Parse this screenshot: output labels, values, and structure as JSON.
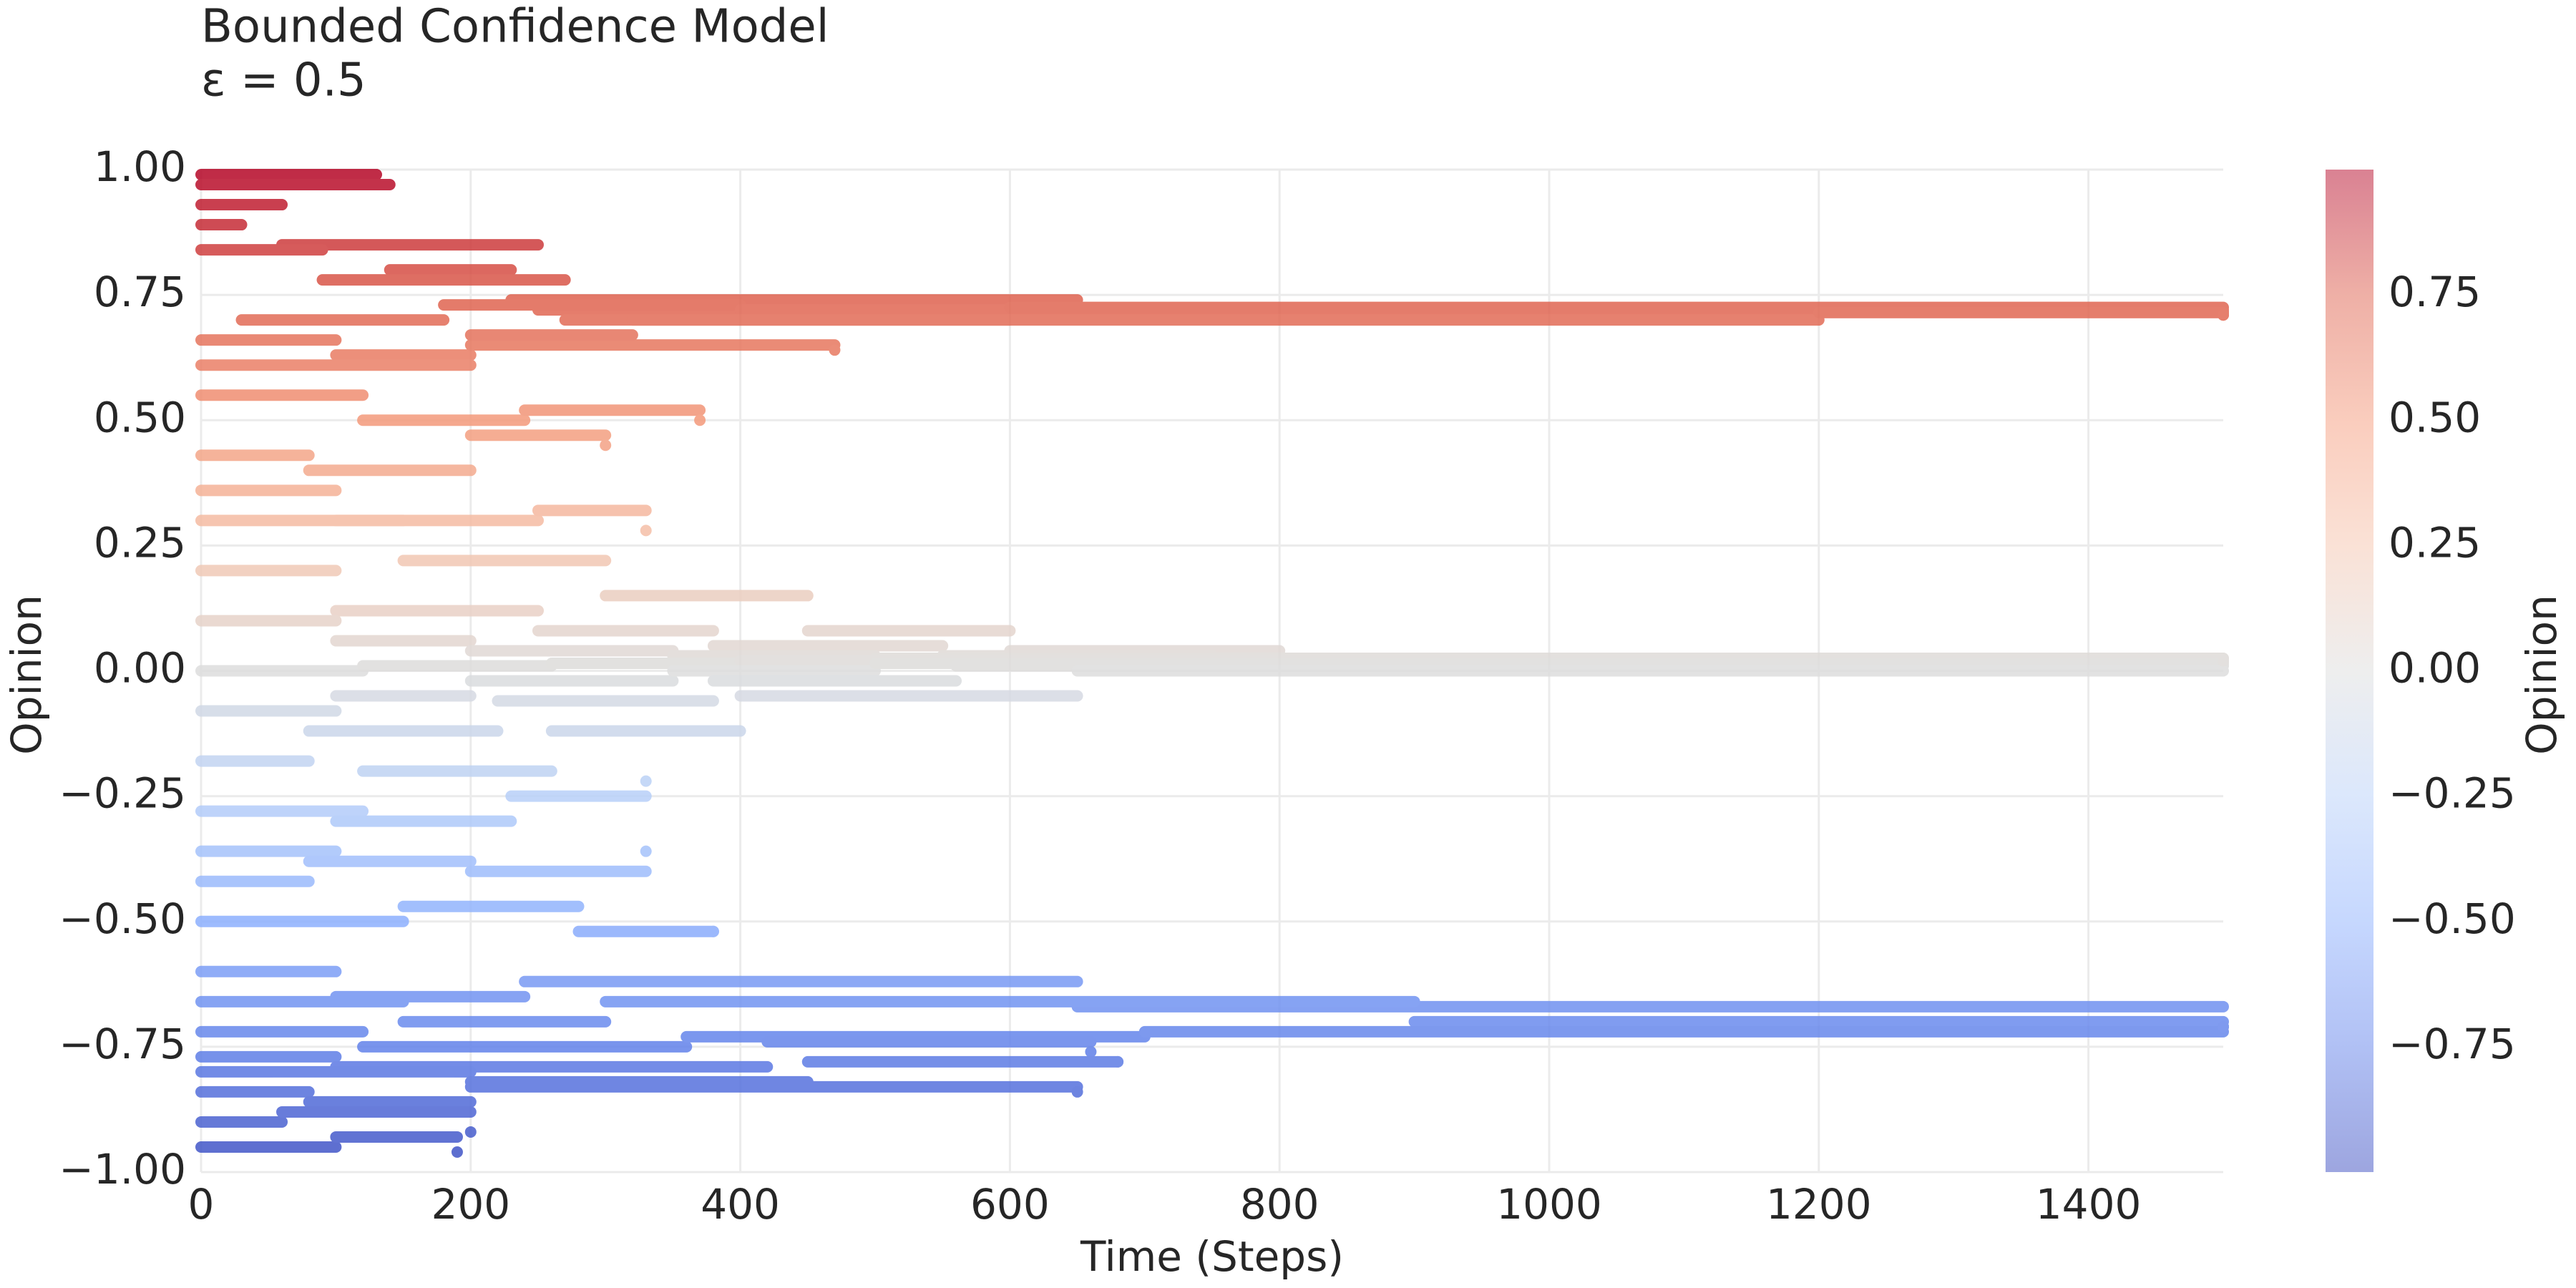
{
  "chart_data": {
    "type": "scatter",
    "title": "Bounded Confidence Model",
    "subtitle": "ε = 0.5",
    "xlabel": "Time (Steps)",
    "ylabel": "Opinion",
    "colorbar_label": "Opinion",
    "xlim": [
      0,
      1500
    ],
    "xticks": [
      0,
      200,
      400,
      600,
      800,
      1000,
      1200,
      1400
    ],
    "ylim": [
      -1,
      1
    ],
    "yticks": [
      {
        "value": -1,
        "label": "−1.00"
      },
      {
        "value": -0.75,
        "label": "−0.75"
      },
      {
        "value": -0.5,
        "label": "−0.50"
      },
      {
        "value": -0.25,
        "label": "−0.25"
      },
      {
        "value": 0,
        "label": "0.00"
      },
      {
        "value": 0.25,
        "label": "0.25"
      },
      {
        "value": 0.5,
        "label": "0.50"
      },
      {
        "value": 0.75,
        "label": "0.75"
      },
      {
        "value": 1,
        "label": "1.00"
      }
    ],
    "clim": [
      -1,
      1
    ],
    "cticks": [
      {
        "value": -0.75,
        "label": "−0.75"
      },
      {
        "value": -0.5,
        "label": "−0.50"
      },
      {
        "value": -0.25,
        "label": "−0.25"
      },
      {
        "value": 0,
        "label": "0.00"
      },
      {
        "value": 0.25,
        "label": "0.25"
      },
      {
        "value": 0.5,
        "label": "0.50"
      },
      {
        "value": 0.75,
        "label": "0.75"
      }
    ],
    "colormap": [
      "#3b4cc0",
      "#6282ea",
      "#8db0fe",
      "#b8d0f9",
      "#dddddd",
      "#f5c4ad",
      "#f49a7b",
      "#de604d",
      "#b40426"
    ],
    "grid": true,
    "series": [
      {
        "x": [
          0,
          130
        ],
        "values": [
          0.99,
          0.99
        ]
      },
      {
        "x": [
          0,
          140,
          230,
          650,
          1500
        ],
        "values": [
          0.97,
          0.8,
          0.74,
          0.715,
          0.71
        ]
      },
      {
        "x": [
          0,
          60,
          250,
          1000,
          1500
        ],
        "values": [
          0.93,
          0.85,
          0.72,
          0.715,
          0.71
        ]
      },
      {
        "x": [
          0,
          30,
          180,
          400,
          1500
        ],
        "values": [
          0.89,
          0.7,
          0.73,
          0.72,
          0.71
        ]
      },
      {
        "x": [
          0,
          90,
          270,
          600,
          1500
        ],
        "values": [
          0.84,
          0.78,
          0.7,
          0.725,
          0.71
        ]
      },
      {
        "x": [
          0,
          100,
          200,
          470
        ],
        "values": [
          0.66,
          0.63,
          0.65,
          0.64
        ]
      },
      {
        "x": [
          0,
          200,
          320,
          1200,
          1500
        ],
        "values": [
          0.61,
          0.67,
          0.7,
          0.715,
          0.71
        ]
      },
      {
        "x": [
          0,
          120,
          240,
          370
        ],
        "values": [
          0.55,
          0.5,
          0.52,
          0.5
        ]
      },
      {
        "x": [
          0,
          80,
          200,
          300
        ],
        "values": [
          0.43,
          0.4,
          0.47,
          0.45
        ]
      },
      {
        "x": [
          0,
          100,
          250,
          330
        ],
        "values": [
          0.36,
          0.3,
          0.32,
          0.28
        ]
      },
      {
        "x": [
          0,
          150,
          300,
          450,
          600,
          800,
          1500
        ],
        "values": [
          0.3,
          0.22,
          0.15,
          0.08,
          0.04,
          0.025,
          0.02
        ]
      },
      {
        "x": [
          0,
          100,
          250,
          380,
          550,
          750,
          1500
        ],
        "values": [
          0.2,
          0.12,
          0.08,
          0.05,
          0.03,
          0.022,
          0.02
        ]
      },
      {
        "x": [
          0,
          100,
          200,
          350,
          500,
          1500
        ],
        "values": [
          0.1,
          0.06,
          0.04,
          0.03,
          0.025,
          0.02
        ]
      },
      {
        "x": [
          0,
          120,
          260,
          400,
          600,
          1500
        ],
        "values": [
          0,
          0.01,
          0.015,
          0.02,
          0.02,
          0.02
        ]
      },
      {
        "x": [
          0,
          100,
          200,
          350,
          500,
          1500
        ],
        "values": [
          -0.08,
          -0.05,
          -0.02,
          0,
          0.015,
          0.02
        ]
      },
      {
        "x": [
          0,
          80,
          220,
          380,
          560,
          1500
        ],
        "values": [
          -0.18,
          -0.12,
          -0.06,
          -0.02,
          0.01,
          0.02
        ]
      },
      {
        "x": [
          0,
          120,
          260,
          400,
          650,
          1500
        ],
        "values": [
          -0.28,
          -0.2,
          -0.12,
          -0.05,
          0,
          0.02
        ]
      },
      {
        "x": [
          0,
          100,
          230,
          330
        ],
        "values": [
          -0.36,
          -0.3,
          -0.25,
          -0.22
        ]
      },
      {
        "x": [
          0,
          80,
          200,
          330
        ],
        "values": [
          -0.42,
          -0.38,
          -0.4,
          -0.36
        ]
      },
      {
        "x": [
          0,
          150,
          280,
          380
        ],
        "values": [
          -0.5,
          -0.47,
          -0.52,
          -0.52
        ]
      },
      {
        "x": [
          0,
          100,
          240,
          650,
          1500
        ],
        "values": [
          -0.6,
          -0.65,
          -0.62,
          -0.67,
          -0.71
        ]
      },
      {
        "x": [
          0,
          150,
          300,
          900,
          1500
        ],
        "values": [
          -0.66,
          -0.7,
          -0.66,
          -0.7,
          -0.71
        ]
      },
      {
        "x": [
          0,
          120,
          360,
          700,
          1500
        ],
        "values": [
          -0.72,
          -0.75,
          -0.73,
          -0.72,
          -0.71
        ]
      },
      {
        "x": [
          0,
          100,
          420,
          660
        ],
        "values": [
          -0.77,
          -0.79,
          -0.74,
          -0.76
        ]
      },
      {
        "x": [
          0,
          200,
          450,
          680
        ],
        "values": [
          -0.8,
          -0.82,
          -0.78,
          -0.78
        ]
      },
      {
        "x": [
          0,
          80,
          200,
          650
        ],
        "values": [
          -0.84,
          -0.86,
          -0.83,
          -0.84
        ]
      },
      {
        "x": [
          0,
          60,
          200
        ],
        "values": [
          -0.9,
          -0.88,
          -0.92
        ]
      },
      {
        "x": [
          0,
          100,
          190
        ],
        "values": [
          -0.95,
          -0.93,
          -0.96
        ]
      }
    ]
  }
}
